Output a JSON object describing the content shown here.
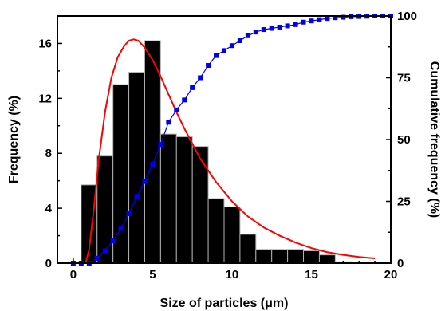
{
  "chart_data": {
    "type": "bar",
    "xlabel": "Size of particles (μm)",
    "ylabel": "Frequency (%)",
    "y2label": "Cumulative frequency (%)",
    "xlim": [
      -1,
      20
    ],
    "ylim": [
      0,
      18
    ],
    "y2lim": [
      0,
      100
    ],
    "x_ticks": [
      0,
      5,
      10,
      15,
      20
    ],
    "y_ticks": [
      0,
      4,
      8,
      12,
      16
    ],
    "y2_ticks": [
      0,
      25,
      50,
      75,
      100
    ],
    "grid": false,
    "bar_width": 1,
    "bars": {
      "x": [
        1,
        2,
        3,
        4,
        5,
        6,
        7,
        8,
        9,
        10,
        11,
        12,
        13,
        14,
        15,
        16,
        17,
        18,
        19
      ],
      "values": [
        5.7,
        7.8,
        13.0,
        13.9,
        16.2,
        9.4,
        9.2,
        8.5,
        4.7,
        4.1,
        2.1,
        1.0,
        1.0,
        1.0,
        0.9,
        0.6,
        0.1,
        0.05,
        0.05
      ]
    },
    "cumulative": {
      "x": [
        0,
        0.5,
        1,
        1.5,
        2,
        2.5,
        3,
        3.5,
        4,
        4.5,
        5,
        5.5,
        6,
        6.5,
        7,
        7.5,
        8,
        8.5,
        9,
        9.5,
        10,
        10.5,
        11,
        11.5,
        12,
        12.5,
        13,
        13.5,
        14,
        14.5,
        15,
        15.5,
        16,
        16.5,
        17,
        17.5,
        18,
        18.5,
        19,
        19.5,
        20
      ],
      "values": [
        0,
        0,
        0,
        2,
        5,
        9,
        14,
        20,
        27,
        33,
        40,
        48,
        57,
        62,
        66,
        71,
        75,
        80,
        84,
        86,
        88,
        90,
        92,
        93.5,
        94.5,
        95,
        95.5,
        96,
        96.5,
        97.5,
        98,
        98.5,
        99,
        99.3,
        99.5,
        99.7,
        99.8,
        99.9,
        100,
        100,
        100
      ]
    },
    "fit": {
      "x": [
        0.8,
        1.0,
        1.3,
        1.6,
        2.0,
        2.4,
        2.8,
        3.2,
        3.5,
        3.8,
        4.1,
        4.5,
        5.0,
        5.5,
        6.0,
        6.5,
        7.0,
        7.5,
        8.0,
        9.0,
        10.0,
        11.0,
        12.0,
        13.0,
        14.0,
        15.0,
        16.0,
        17.0,
        18.0,
        19.0
      ],
      "values": [
        0.1,
        1.0,
        4.0,
        7.5,
        11.0,
        13.5,
        15.0,
        15.8,
        16.2,
        16.3,
        16.2,
        15.7,
        14.8,
        13.6,
        12.3,
        11.0,
        9.8,
        8.7,
        7.6,
        5.9,
        4.5,
        3.4,
        2.6,
        2.0,
        1.5,
        1.1,
        0.8,
        0.6,
        0.45,
        0.35
      ]
    },
    "colors": {
      "bars": "#000000",
      "bar_edge": "#b0b0b0",
      "cumulative": "#0000ee",
      "fit": "#ff0000"
    }
  }
}
